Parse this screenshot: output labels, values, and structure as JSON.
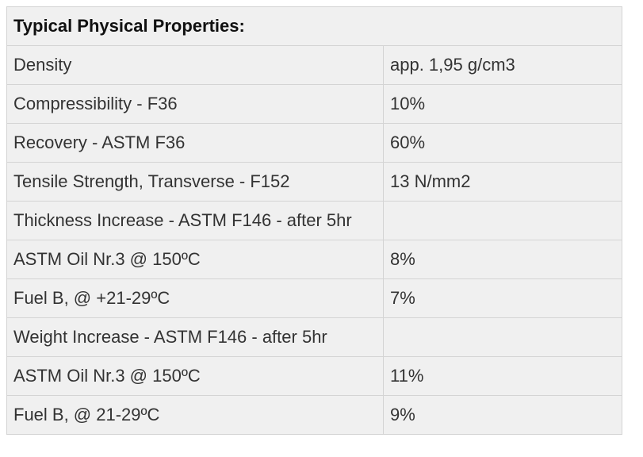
{
  "table": {
    "header": "Typical Physical Properties:",
    "rows": [
      {
        "property": "Density",
        "value": "app. 1,95 g/cm3"
      },
      {
        "property": "Compressibility - F36",
        "value": "10%"
      },
      {
        "property": "Recovery - ASTM F36",
        "value": "60%"
      },
      {
        "property": "Tensile Strength, Transverse - F152",
        "value": "13 N/mm2"
      },
      {
        "property": "Thickness Increase - ASTM F146 - after 5hr",
        "value": ""
      },
      {
        "property": "ASTM Oil Nr.3 @ 150ºC",
        "value": "8%"
      },
      {
        "property": "Fuel B, @ +21-29ºC",
        "value": "7%"
      },
      {
        "property": "Weight Increase - ASTM F146 - after 5hr",
        "value": ""
      },
      {
        "property": "ASTM Oil Nr.3 @ 150ºC",
        "value": "11%"
      },
      {
        "property": "Fuel B, @ 21-29ºC",
        "value": "9%"
      }
    ]
  }
}
